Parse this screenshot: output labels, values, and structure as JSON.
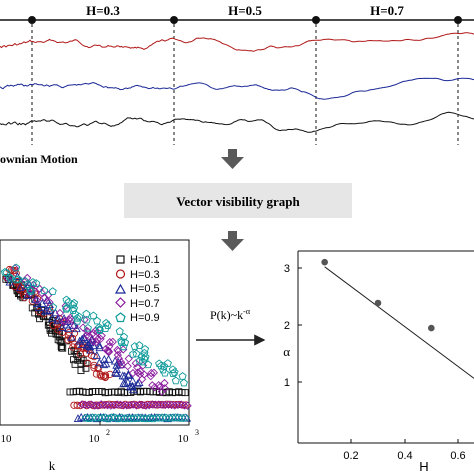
{
  "top": {
    "segments": [
      "H=0.3",
      "H=0.5",
      "H=0.7"
    ],
    "caption": "ownian Motion",
    "series_colors": [
      "#b01818",
      "#1a2896",
      "#111111"
    ]
  },
  "middle": {
    "label": "Vector visibility graph"
  },
  "relation": {
    "base": "P(k)~k",
    "exponent": "-α",
    "alpha": "α"
  },
  "chart_data": [
    {
      "type": "scatter",
      "xlabel": "k",
      "xscale": "log",
      "yscale": "log",
      "xticks": [
        "10",
        "10",
        "10"
      ],
      "xtick_exponents": [
        "",
        "2",
        "3"
      ],
      "legend": {
        "placement": "top-right",
        "entries": [
          {
            "label": "H=0.1",
            "marker": "square",
            "color": "#111111"
          },
          {
            "label": "H=0.3",
            "marker": "circle",
            "color": "#b01818"
          },
          {
            "label": "H=0.5",
            "marker": "triangle",
            "color": "#1a2896"
          },
          {
            "label": "H=0.7",
            "marker": "diamond",
            "color": "#8a1a9e"
          },
          {
            "label": "H=0.9",
            "marker": "pentagon",
            "color": "#0f9a9a"
          }
        ]
      }
    },
    {
      "type": "scatter",
      "xlabel": "H",
      "ylabel": "α",
      "xlim": [
        0.0,
        0.8
      ],
      "ylim": [
        0,
        3.25
      ],
      "xticks": [
        "0.2",
        "0.4",
        "0.6"
      ],
      "yticks": [
        "1",
        "2",
        "3"
      ],
      "points": [
        {
          "x": 0.1,
          "y": 3.1
        },
        {
          "x": 0.3,
          "y": 2.4
        },
        {
          "x": 0.5,
          "y": 1.97
        }
      ],
      "fit_line": {
        "x": [
          0.1,
          0.8
        ],
        "y": [
          3.02,
          0.63
        ]
      }
    }
  ]
}
